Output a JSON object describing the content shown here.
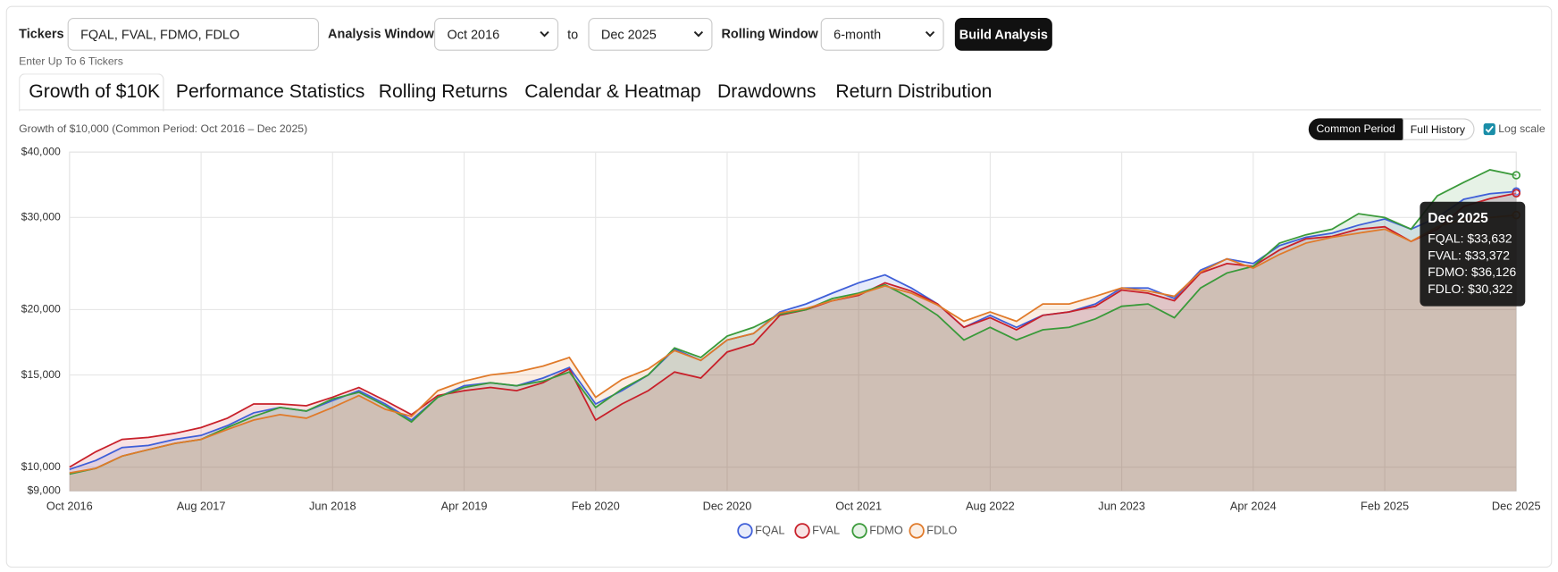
{
  "controls": {
    "tickers_label": "Tickers",
    "tickers_value": "FQAL, FVAL, FDMO, FDLO",
    "tickers_hint": "Enter Up To 6 Tickers",
    "window_label": "Analysis Window",
    "window_start": "Oct 2016",
    "window_to": "to",
    "window_end": "Dec 2025",
    "rolling_label": "Rolling Window",
    "rolling_value": "6-month",
    "build_button": "Build Analysis"
  },
  "tabs": [
    "Growth of $10K",
    "Performance Statistics",
    "Rolling Returns",
    "Calendar & Heatmap",
    "Drawdowns",
    "Return Distribution"
  ],
  "panel": {
    "subtitle": "Growth of $10,000 (Common Period: Oct 2016 – Dec 2025)",
    "toggle": [
      "Common Period",
      "Full History"
    ],
    "log_label": "Log scale"
  },
  "tooltip": {
    "title": "Dec 2025",
    "lines": [
      "FQAL: $33,632",
      "FVAL: $33,372",
      "FDMO: $36,126",
      "FDLO: $30,322"
    ]
  },
  "chart_data": {
    "type": "line",
    "log_scale": true,
    "grid": true,
    "legend": "bottom",
    "categories": [
      "Oct 2016",
      null,
      null,
      null,
      null,
      "Aug 2017",
      null,
      null,
      null,
      null,
      "Jun 2018",
      null,
      null,
      null,
      null,
      "Apr 2019",
      null,
      null,
      null,
      null,
      "Feb 2020",
      null,
      null,
      null,
      null,
      "Dec 2020",
      null,
      null,
      null,
      null,
      "Oct 2021",
      null,
      null,
      null,
      null,
      "Aug 2022",
      null,
      null,
      null,
      null,
      "Jun 2023",
      null,
      null,
      null,
      null,
      "Apr 2024",
      null,
      null,
      null,
      null,
      "Feb 2025",
      null,
      null,
      null,
      null,
      "Dec 2025"
    ],
    "ylim": [
      9000,
      40000
    ],
    "yticks": [
      {
        "value": 9000,
        "label": "$9,000"
      },
      {
        "value": 10000,
        "label": "$10,000"
      },
      {
        "value": 15000,
        "label": "$15,000"
      },
      {
        "value": 20000,
        "label": "$20,000"
      },
      {
        "value": 30000,
        "label": "$30,000"
      },
      {
        "value": 40000,
        "label": "$40,000"
      }
    ],
    "series": [
      {
        "name": "FQAL",
        "color": "#3f5fd8",
        "values": [
          9900,
          10300,
          10900,
          11000,
          11300,
          11500,
          12000,
          12700,
          13000,
          12800,
          13400,
          14000,
          13200,
          12300,
          13600,
          14300,
          14500,
          14300,
          14800,
          15500,
          13200,
          14000,
          15000,
          16800,
          16000,
          17500,
          18000,
          19800,
          20500,
          21500,
          22500,
          23300,
          22000,
          20500,
          18500,
          19500,
          18500,
          19500,
          19800,
          20500,
          22000,
          22000,
          21000,
          23800,
          25000,
          24500,
          26500,
          27500,
          28000,
          29000,
          29800,
          28500,
          30000,
          32500,
          33300,
          33632
        ]
      },
      {
        "name": "FVAL",
        "color": "#c8202a",
        "values": [
          10000,
          10700,
          11300,
          11400,
          11600,
          11900,
          12400,
          13200,
          13200,
          13100,
          13600,
          14200,
          13400,
          12600,
          13700,
          14000,
          14200,
          14000,
          14500,
          15400,
          12300,
          13200,
          14000,
          15200,
          14800,
          16600,
          17200,
          19500,
          20000,
          20800,
          21300,
          22500,
          21700,
          20500,
          18500,
          19300,
          18300,
          19500,
          19800,
          20300,
          21800,
          21500,
          20800,
          23500,
          24500,
          24200,
          26000,
          27300,
          27600,
          28500,
          28800,
          27000,
          28500,
          31500,
          32600,
          33372
        ]
      },
      {
        "name": "FDMO",
        "color": "#3a9a3a",
        "values": [
          9700,
          9950,
          10500,
          10800,
          11100,
          11300,
          11900,
          12500,
          13000,
          12800,
          13500,
          13900,
          13100,
          12200,
          13600,
          14200,
          14500,
          14300,
          14600,
          15200,
          13000,
          14100,
          15000,
          16900,
          16200,
          17800,
          18500,
          19600,
          20000,
          21000,
          21500,
          22300,
          21000,
          19500,
          17500,
          18500,
          17500,
          18300,
          18500,
          19200,
          20300,
          20500,
          19300,
          22000,
          23500,
          24200,
          26800,
          27800,
          28500,
          30500,
          30000,
          28500,
          33000,
          35000,
          37000,
          36126
        ]
      },
      {
        "name": "FDLO",
        "color": "#e07a2a",
        "values": [
          9750,
          9950,
          10500,
          10800,
          11100,
          11300,
          11800,
          12300,
          12600,
          12400,
          13000,
          13700,
          12900,
          12500,
          14000,
          14600,
          15000,
          15200,
          15600,
          16200,
          13600,
          14700,
          15400,
          16700,
          16000,
          17500,
          18000,
          19700,
          20100,
          20800,
          21400,
          22200,
          21500,
          20400,
          19000,
          19800,
          19000,
          20500,
          20500,
          21200,
          22000,
          21700,
          21200,
          23600,
          25000,
          24000,
          25500,
          26800,
          27500,
          28000,
          28500,
          27000,
          28800,
          29800,
          30000,
          30322
        ]
      }
    ]
  }
}
